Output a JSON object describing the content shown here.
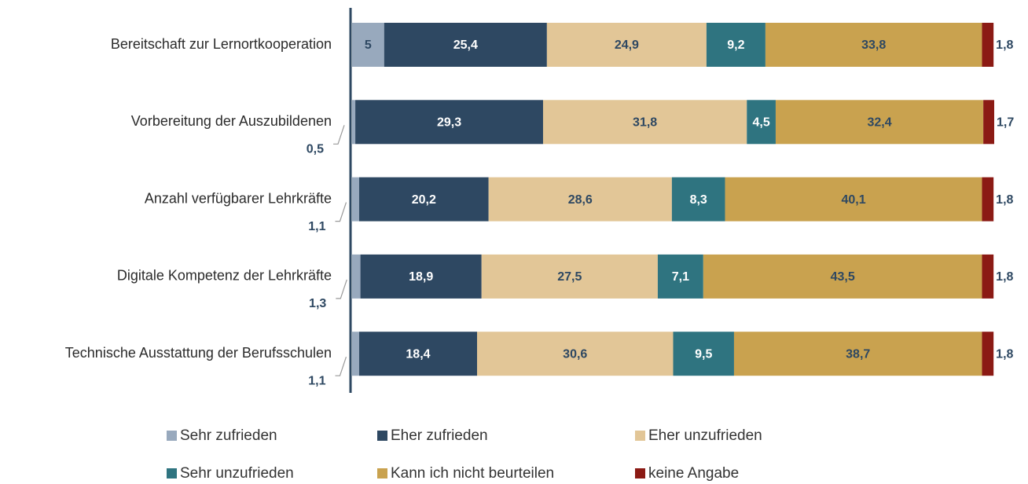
{
  "chart_data": {
    "type": "stacked-bar-horizontal",
    "categories": [
      "Bereitschaft zur Lernortkooperation",
      "Vorbereitung der Auszubildenen",
      "Anzahl verfügbarer Lehrkräfte",
      "Digitale Kompetenz der Lehrkräfte",
      "Technische Ausstattung der Berufsschulen"
    ],
    "xlim": [
      0,
      100.2
    ],
    "series": [
      {
        "name": "Sehr zufrieden",
        "color": "#98a9bd",
        "values": [
          5,
          0.5,
          1.1,
          1.3,
          1.1
        ],
        "value_labels": [
          "5",
          "0,5",
          "1,1",
          "1,3",
          "1,1"
        ]
      },
      {
        "name": "Eher zufrieden",
        "color": "#2e4862",
        "values": [
          25.4,
          29.3,
          20.2,
          18.9,
          18.4
        ],
        "value_labels": [
          "25,4",
          "29,3",
          "20,2",
          "18,9",
          "18,4"
        ]
      },
      {
        "name": "Eher unzufrieden",
        "color": "#e2c697",
        "values": [
          24.9,
          31.8,
          28.6,
          27.5,
          30.6
        ],
        "value_labels": [
          "24,9",
          "31,8",
          "28,6",
          "27,5",
          "30,6"
        ]
      },
      {
        "name": "Sehr unzufrieden",
        "color": "#2f7480",
        "values": [
          9.2,
          4.5,
          8.3,
          7.1,
          9.5
        ],
        "value_labels": [
          "9,2",
          "4,5",
          "8,3",
          "7,1",
          "9,5"
        ]
      },
      {
        "name": "Kann ich nicht beurteilen",
        "color": "#c9a24f",
        "values": [
          33.8,
          32.4,
          40.1,
          43.5,
          38.7
        ],
        "value_labels": [
          "33,8",
          "32,4",
          "40,1",
          "43,5",
          "38,7"
        ]
      },
      {
        "name": "keine Angabe",
        "color": "#8b1a14",
        "values": [
          1.8,
          1.7,
          1.8,
          1.8,
          1.8
        ],
        "value_labels": [
          "1,8",
          "1,7",
          "1,8",
          "1,8",
          "1,8"
        ]
      }
    ]
  }
}
